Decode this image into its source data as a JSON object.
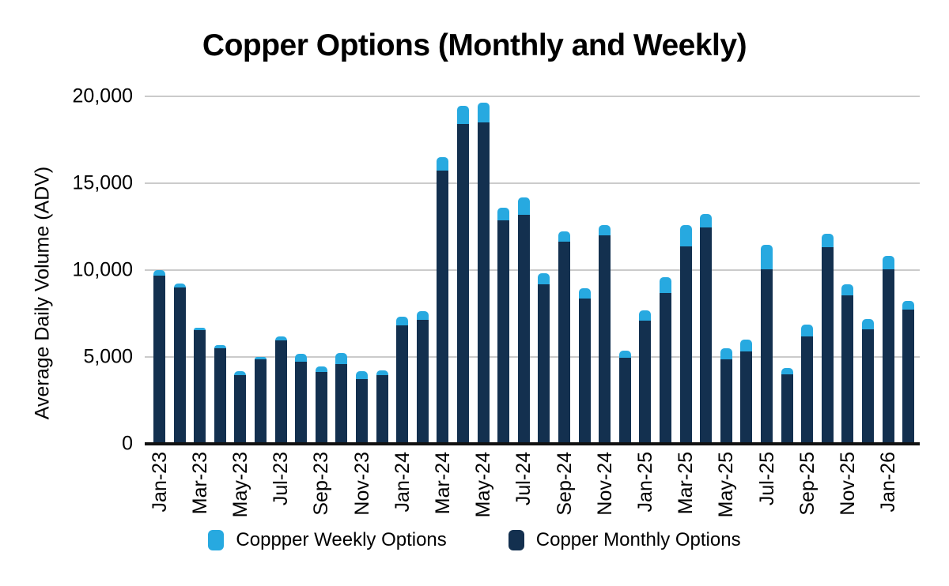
{
  "title": "Copper Options (Monthly and Weekly)",
  "legend": {
    "weekly_label": "Coppper Weekly Options",
    "monthly_label": "Copper Monthly Options"
  },
  "colors": {
    "weekly": "#27A9E0",
    "monthly": "#13304F",
    "gridline": "#CBCBCB",
    "axis": "#111111"
  },
  "chart_data": {
    "type": "bar",
    "stacked": true,
    "title": "Copper Options (Monthly and Weekly)",
    "xlabel": "",
    "ylabel": "Average Daily Volume (ADV)",
    "ylim": [
      0,
      20000
    ],
    "grid": "horizontal",
    "legend_position": "bottom",
    "y_ticks": [
      {
        "value": 20000,
        "label": "20,000"
      },
      {
        "value": 15000,
        "label": "15,000"
      },
      {
        "value": 10000,
        "label": "10,000"
      },
      {
        "value": 5000,
        "label": "5,000"
      },
      {
        "value": 0,
        "label": "0"
      }
    ],
    "categories": [
      "Jan-23",
      "Feb-23",
      "Mar-23",
      "Apr-23",
      "May-23",
      "Jun-23",
      "Jul-23",
      "Aug-23",
      "Sep-23",
      "Oct-23",
      "Nov-23",
      "Dec-23",
      "Jan-24",
      "Feb-24",
      "Mar-24",
      "Apr-24",
      "May-24",
      "Jun-24",
      "Jul-24",
      "Aug-24",
      "Sep-24",
      "Oct-24",
      "Nov-24",
      "Dec-24",
      "Jan-25",
      "Feb-25",
      "Mar-25",
      "Apr-25",
      "May-25",
      "Jun-25",
      "Jul-25",
      "Aug-25",
      "Sep-25",
      "Oct-25",
      "Nov-25",
      "Dec-25",
      "Jan-26",
      "Feb-26"
    ],
    "x_tick_labels": [
      "Jan-23",
      "Mar-23",
      "May-23",
      "Jul-23",
      "Sep-23",
      "Nov-23",
      "Jan-24",
      "Mar-24",
      "May-24",
      "Jul-24",
      "Sep-24",
      "Nov-24",
      "Jan-25",
      "Mar-25",
      "May-25",
      "Jul-25",
      "Sep-25",
      "Nov-25",
      "Jan-26"
    ],
    "series": [
      {
        "name": "Copper Monthly Options",
        "color": "#13304F",
        "values": [
          9700,
          9000,
          6550,
          5500,
          3950,
          4850,
          5950,
          4750,
          4150,
          4600,
          3750,
          3950,
          6800,
          7150,
          15750,
          18400,
          18500,
          12850,
          13200,
          9200,
          11650,
          8350,
          12000,
          4950,
          7100,
          8700,
          11350,
          12450,
          4850,
          5300,
          10050,
          4000,
          6200,
          11300,
          8550,
          6600,
          10050,
          7750
        ]
      },
      {
        "name": "Coppper Weekly Options",
        "color": "#27A9E0",
        "values": [
          300,
          250,
          150,
          200,
          250,
          150,
          250,
          450,
          300,
          650,
          450,
          300,
          500,
          500,
          750,
          1050,
          1150,
          750,
          1000,
          600,
          600,
          600,
          600,
          400,
          600,
          900,
          1250,
          800,
          650,
          700,
          1400,
          350,
          650,
          800,
          650,
          600,
          750,
          500
        ]
      }
    ]
  }
}
